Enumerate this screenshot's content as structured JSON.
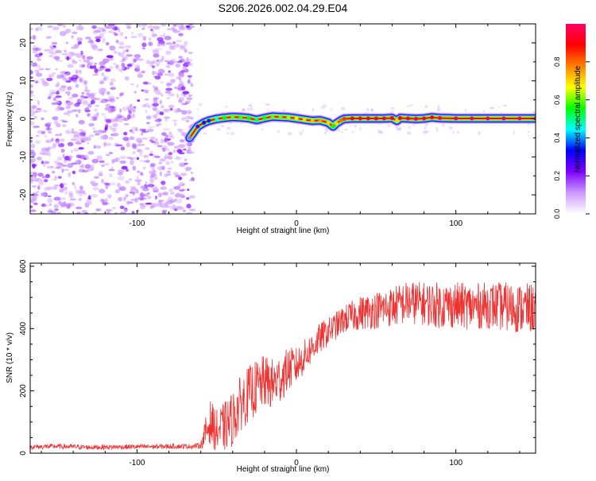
{
  "figure_title": "S206.2026.002.04.29.E04",
  "colors": {
    "snr_line": "#ee3333",
    "scatter_points": "#8a2be2",
    "axis": "#000000"
  },
  "chart_data": [
    {
      "type": "heatmap",
      "title": "S206.2026.002.04.29.E04",
      "xlabel": "Height of straight line (km)",
      "ylabel": "Frequency (Hz)",
      "xlim": [
        -167,
        150
      ],
      "ylim": [
        -25,
        25
      ],
      "xticks": [
        -100,
        0,
        100
      ],
      "xtick_labels": [
        "-100",
        "0",
        "100"
      ],
      "yticks": [
        -20,
        -10,
        0,
        10,
        20
      ],
      "ytick_labels": [
        "-20",
        "-10",
        "0",
        "10",
        "20"
      ],
      "colorbar": {
        "label": "Normalized spectral amplitude",
        "range": [
          0,
          1
        ],
        "ticks": [
          0.0,
          0.2,
          0.4,
          0.6,
          0.8
        ],
        "tick_labels": [
          "0.0",
          "0.2",
          "0.4",
          "0.6",
          "0.8"
        ],
        "colormap": [
          "#ffffff",
          "#cc99ff",
          "#7f00ff",
          "#0000ff",
          "#00ffff",
          "#00ff00",
          "#ffff00",
          "#ff8000",
          "#ff0000",
          "#ff0066"
        ]
      },
      "noise_region_x": [
        -167,
        -67
      ],
      "signal_region_x": [
        -67,
        150
      ],
      "signal_ridge": {
        "x": [
          -67,
          -62,
          -58,
          -55,
          -50,
          -45,
          -40,
          -35,
          -30,
          -25,
          -20,
          -15,
          -10,
          -5,
          0,
          5,
          10,
          15,
          20,
          23,
          25,
          28,
          30,
          35,
          40,
          45,
          50,
          55,
          60,
          63,
          65,
          70,
          75,
          80,
          85,
          90,
          100,
          110,
          120,
          130,
          140,
          150
        ],
        "y": [
          -5,
          -2,
          -1,
          -0.5,
          0,
          0.3,
          0.5,
          0.4,
          0.2,
          -0.3,
          0.2,
          0.6,
          0.5,
          0.4,
          0.1,
          -0.2,
          -0.5,
          -0.4,
          -1.0,
          -2.0,
          -1.2,
          -0.4,
          0,
          0.1,
          0.1,
          0.1,
          0.1,
          0.1,
          0.2,
          -0.5,
          0.2,
          0.1,
          0,
          0.1,
          0.4,
          0.2,
          0.1,
          0.1,
          0.1,
          0.1,
          0.1,
          0.1
        ],
        "amplitude": [
          0.15,
          0.25,
          0.3,
          0.35,
          0.45,
          0.55,
          0.6,
          0.58,
          0.55,
          0.5,
          0.55,
          0.6,
          0.6,
          0.62,
          0.65,
          0.7,
          0.72,
          0.75,
          0.7,
          0.55,
          0.7,
          0.8,
          0.85,
          0.9,
          0.92,
          0.93,
          0.94,
          0.95,
          0.93,
          0.7,
          0.9,
          0.95,
          0.96,
          0.95,
          0.9,
          0.97,
          0.98,
          0.98,
          0.98,
          0.98,
          0.98,
          0.97
        ]
      }
    },
    {
      "type": "line",
      "xlabel": "Height of straight line (km)",
      "ylabel": "SNR (10 * v/v)",
      "xlim": [
        -167,
        150
      ],
      "ylim": [
        0,
        610
      ],
      "xticks": [
        -100,
        0,
        100
      ],
      "xtick_labels": [
        "-100",
        "0",
        "100"
      ],
      "yticks": [
        0,
        200,
        400,
        600
      ],
      "ytick_labels": [
        "0",
        "200",
        "400",
        "600"
      ],
      "series": [
        {
          "name": "SNR",
          "x": [
            -167,
            -150,
            -130,
            -110,
            -90,
            -75,
            -65,
            -60,
            -57,
            -54,
            -50,
            -45,
            -40,
            -35,
            -30,
            -25,
            -20,
            -15,
            -10,
            -5,
            0,
            5,
            10,
            15,
            20,
            25,
            30,
            35,
            40,
            50,
            60,
            70,
            80,
            90,
            100,
            110,
            120,
            130,
            140,
            150
          ],
          "values": [
            20,
            22,
            19,
            20,
            21,
            22,
            22,
            25,
            65,
            100,
            70,
            85,
            110,
            160,
            190,
            210,
            230,
            220,
            240,
            270,
            280,
            310,
            340,
            370,
            390,
            410,
            430,
            440,
            450,
            460,
            470,
            485,
            480,
            475,
            475,
            470,
            475,
            470,
            465,
            465
          ],
          "spread": [
            8,
            8,
            8,
            8,
            8,
            8,
            8,
            10,
            50,
            70,
            70,
            80,
            90,
            90,
            90,
            90,
            85,
            85,
            80,
            70,
            60,
            55,
            50,
            50,
            45,
            45,
            45,
            50,
            55,
            60,
            65,
            70,
            70,
            75,
            75,
            75,
            75,
            80,
            80,
            80
          ]
        }
      ]
    }
  ]
}
